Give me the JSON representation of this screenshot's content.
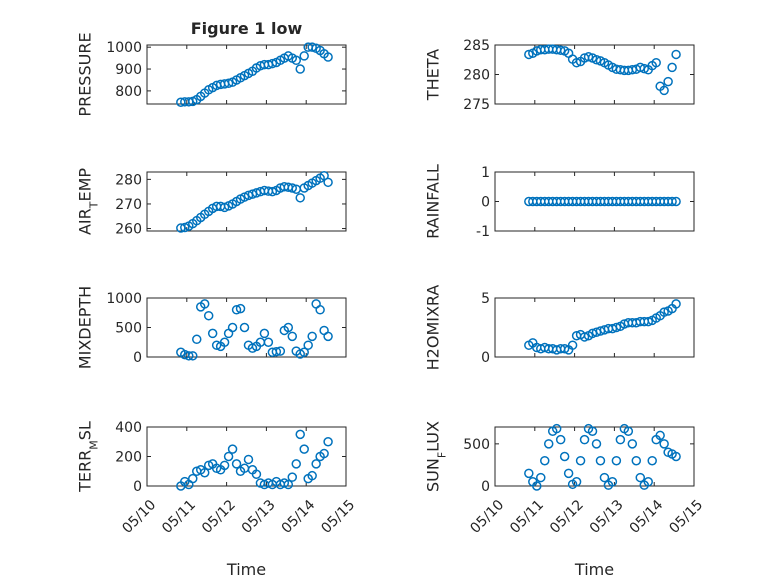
{
  "chart_data": [
    {
      "type": "scatter",
      "title": "Figure 1 low",
      "ylabel_html": "PRESSURE",
      "xlim": [
        0,
        5
      ],
      "ylim": [
        740,
        1010
      ],
      "yticks": [
        800,
        900,
        1000
      ],
      "xticklabels": [],
      "series": [
        {
          "x": [
            0.85,
            0.95,
            1.05,
            1.15,
            1.25,
            1.35,
            1.45,
            1.55,
            1.65,
            1.75,
            1.85,
            1.95,
            2.05,
            2.15,
            2.25,
            2.35,
            2.45,
            2.55,
            2.65,
            2.75,
            2.85,
            2.95,
            3.05,
            3.15,
            3.25,
            3.35,
            3.45,
            3.55,
            3.65,
            3.75,
            3.85,
            3.95,
            4.05,
            4.15,
            4.25,
            4.35,
            4.45,
            4.55
          ],
          "y": [
            748,
            750,
            750,
            752,
            760,
            775,
            790,
            805,
            815,
            825,
            830,
            832,
            835,
            840,
            850,
            860,
            870,
            880,
            890,
            905,
            915,
            920,
            920,
            925,
            930,
            940,
            950,
            960,
            950,
            940,
            900,
            960,
            1000,
            1000,
            995,
            985,
            970,
            955
          ]
        }
      ]
    },
    {
      "type": "scatter",
      "ylabel_html": "THETA",
      "xlim": [
        0,
        5
      ],
      "ylim": [
        275,
        285
      ],
      "yticks": [
        275,
        280,
        285
      ],
      "xticklabels": [],
      "series": [
        {
          "x": [
            0.85,
            0.95,
            1.05,
            1.15,
            1.25,
            1.35,
            1.45,
            1.55,
            1.65,
            1.75,
            1.85,
            1.95,
            2.05,
            2.15,
            2.25,
            2.35,
            2.45,
            2.55,
            2.65,
            2.75,
            2.85,
            2.95,
            3.05,
            3.15,
            3.25,
            3.35,
            3.45,
            3.55,
            3.65,
            3.75,
            3.85,
            3.95,
            4.05,
            4.15,
            4.25,
            4.35,
            4.45,
            4.55
          ],
          "y": [
            283.4,
            283.6,
            284.0,
            284.2,
            284.2,
            284.3,
            284.3,
            284.2,
            284.1,
            284.0,
            283.6,
            282.6,
            282.0,
            282.2,
            282.8,
            283.0,
            282.8,
            282.5,
            282.3,
            282.0,
            281.6,
            281.2,
            280.9,
            280.8,
            280.7,
            280.7,
            280.8,
            280.9,
            281.2,
            281.0,
            280.8,
            281.5,
            282.0,
            278.0,
            277.3,
            278.8,
            281.2,
            283.4
          ]
        }
      ]
    },
    {
      "type": "scatter",
      "ylabel_html": "AIR<tspan baseline-shift=\"sub\" font-size=\"11px\">T</tspan>EMP",
      "xlim": [
        0,
        5
      ],
      "ylim": [
        259,
        283
      ],
      "yticks": [
        260,
        270,
        280
      ],
      "xticklabels": [],
      "series": [
        {
          "x": [
            0.85,
            0.95,
            1.05,
            1.15,
            1.25,
            1.35,
            1.45,
            1.55,
            1.65,
            1.75,
            1.85,
            1.95,
            2.05,
            2.15,
            2.25,
            2.35,
            2.45,
            2.55,
            2.65,
            2.75,
            2.85,
            2.95,
            3.05,
            3.15,
            3.25,
            3.35,
            3.45,
            3.55,
            3.65,
            3.75,
            3.85,
            3.95,
            4.05,
            4.15,
            4.25,
            4.35,
            4.45,
            4.55
          ],
          "y": [
            260.2,
            260.4,
            261.0,
            262.0,
            263.2,
            264.5,
            265.8,
            267.0,
            268.2,
            269.0,
            269.0,
            268.6,
            269.2,
            270.0,
            271.0,
            272.0,
            272.8,
            273.5,
            274.0,
            274.5,
            275.0,
            275.5,
            275.2,
            275.0,
            275.5,
            276.5,
            277.0,
            276.8,
            276.5,
            276.0,
            272.5,
            276.5,
            277.5,
            278.5,
            279.5,
            280.5,
            281.5,
            278.8
          ]
        }
      ]
    },
    {
      "type": "scatter",
      "ylabel_html": "RAINFALL",
      "xlim": [
        0,
        5
      ],
      "ylim": [
        -1,
        1
      ],
      "yticks": [
        -1,
        0,
        1
      ],
      "xticklabels": [],
      "series": [
        {
          "x": [
            0.85,
            0.95,
            1.05,
            1.15,
            1.25,
            1.35,
            1.45,
            1.55,
            1.65,
            1.75,
            1.85,
            1.95,
            2.05,
            2.15,
            2.25,
            2.35,
            2.45,
            2.55,
            2.65,
            2.75,
            2.85,
            2.95,
            3.05,
            3.15,
            3.25,
            3.35,
            3.45,
            3.55,
            3.65,
            3.75,
            3.85,
            3.95,
            4.05,
            4.15,
            4.25,
            4.35,
            4.45,
            4.55
          ],
          "y": [
            0,
            0,
            0,
            0,
            0,
            0,
            0,
            0,
            0,
            0,
            0,
            0,
            0,
            0,
            0,
            0,
            0,
            0,
            0,
            0,
            0,
            0,
            0,
            0,
            0,
            0,
            0,
            0,
            0,
            0,
            0,
            0,
            0,
            0,
            0,
            0,
            0,
            0
          ]
        }
      ]
    },
    {
      "type": "scatter",
      "ylabel_html": "MIXDEPTH",
      "xlim": [
        0,
        5
      ],
      "ylim": [
        0,
        1000
      ],
      "yticks": [
        0,
        500,
        1000
      ],
      "xticklabels": [],
      "series": [
        {
          "x": [
            0.85,
            0.95,
            1.05,
            1.15,
            1.25,
            1.35,
            1.45,
            1.55,
            1.65,
            1.75,
            1.85,
            1.95,
            2.05,
            2.15,
            2.25,
            2.35,
            2.45,
            2.55,
            2.65,
            2.75,
            2.85,
            2.95,
            3.05,
            3.15,
            3.25,
            3.35,
            3.45,
            3.55,
            3.65,
            3.75,
            3.85,
            3.95,
            4.05,
            4.15,
            4.25,
            4.35,
            4.45,
            4.55
          ],
          "y": [
            80,
            40,
            20,
            20,
            300,
            850,
            900,
            700,
            400,
            200,
            180,
            250,
            400,
            500,
            800,
            820,
            500,
            200,
            150,
            180,
            250,
            400,
            250,
            80,
            90,
            100,
            450,
            500,
            350,
            100,
            50,
            80,
            200,
            350,
            900,
            800,
            450,
            350
          ]
        }
      ]
    },
    {
      "type": "scatter",
      "ylabel_html": "H2OMIXRA",
      "xlim": [
        0,
        5
      ],
      "ylim": [
        0,
        5
      ],
      "yticks": [
        0,
        5
      ],
      "xticklabels": [],
      "series": [
        {
          "x": [
            0.85,
            0.95,
            1.05,
            1.15,
            1.25,
            1.35,
            1.45,
            1.55,
            1.65,
            1.75,
            1.85,
            1.95,
            2.05,
            2.15,
            2.25,
            2.35,
            2.45,
            2.55,
            2.65,
            2.75,
            2.85,
            2.95,
            3.05,
            3.15,
            3.25,
            3.35,
            3.45,
            3.55,
            3.65,
            3.75,
            3.85,
            3.95,
            4.05,
            4.15,
            4.25,
            4.35,
            4.45,
            4.55
          ],
          "y": [
            1.0,
            1.2,
            0.8,
            0.7,
            0.8,
            0.7,
            0.7,
            0.6,
            0.7,
            0.7,
            0.6,
            1.0,
            1.8,
            1.9,
            1.7,
            1.8,
            2.0,
            2.1,
            2.2,
            2.3,
            2.4,
            2.4,
            2.5,
            2.6,
            2.8,
            2.9,
            2.9,
            2.9,
            3.0,
            3.0,
            3.0,
            3.1,
            3.3,
            3.5,
            3.8,
            3.9,
            4.1,
            4.5
          ]
        }
      ]
    },
    {
      "type": "scatter",
      "ylabel_html": "TERR<tspan baseline-shift=\"sub\" font-size=\"11px\">M</tspan>SL",
      "xlim": [
        0,
        5
      ],
      "ylim": [
        0,
        400
      ],
      "yticks": [
        0,
        200,
        400
      ],
      "xticklabels": [
        "05/10",
        "05/11",
        "05/12",
        "05/13",
        "05/14",
        "05/15"
      ],
      "xlabel": "Time",
      "series": [
        {
          "x": [
            0.85,
            0.95,
            1.05,
            1.15,
            1.25,
            1.35,
            1.45,
            1.55,
            1.65,
            1.75,
            1.85,
            1.95,
            2.05,
            2.15,
            2.25,
            2.35,
            2.45,
            2.55,
            2.65,
            2.75,
            2.85,
            2.95,
            3.05,
            3.15,
            3.25,
            3.35,
            3.45,
            3.55,
            3.65,
            3.75,
            3.85,
            3.95,
            4.05,
            4.15,
            4.25,
            4.35,
            4.45,
            4.55
          ],
          "y": [
            0,
            30,
            10,
            50,
            100,
            110,
            90,
            140,
            150,
            120,
            110,
            140,
            200,
            250,
            150,
            100,
            120,
            180,
            110,
            80,
            20,
            10,
            20,
            10,
            30,
            10,
            20,
            10,
            60,
            150,
            350,
            250,
            50,
            70,
            150,
            200,
            220,
            300
          ]
        }
      ]
    },
    {
      "type": "scatter",
      "ylabel_html": "SUN<tspan baseline-shift=\"sub\" font-size=\"11px\">F</tspan>LUX",
      "xlim": [
        0,
        5
      ],
      "ylim": [
        0,
        700
      ],
      "yticks": [
        0,
        500
      ],
      "xticklabels": [
        "05/10",
        "05/11",
        "05/12",
        "05/13",
        "05/14",
        "05/15"
      ],
      "xlabel": "Time",
      "series": [
        {
          "x": [
            0.85,
            0.95,
            1.05,
            1.15,
            1.25,
            1.35,
            1.45,
            1.55,
            1.65,
            1.75,
            1.85,
            1.95,
            2.05,
            2.15,
            2.25,
            2.35,
            2.45,
            2.55,
            2.65,
            2.75,
            2.85,
            2.95,
            3.05,
            3.15,
            3.25,
            3.35,
            3.45,
            3.55,
            3.65,
            3.75,
            3.85,
            3.95,
            4.05,
            4.15,
            4.25,
            4.35,
            4.45,
            4.55
          ],
          "y": [
            150,
            50,
            0,
            100,
            300,
            500,
            650,
            680,
            550,
            350,
            150,
            20,
            50,
            300,
            550,
            680,
            650,
            500,
            300,
            100,
            10,
            50,
            300,
            550,
            680,
            650,
            500,
            300,
            100,
            10,
            50,
            300,
            550,
            600,
            500,
            400,
            380,
            350
          ]
        }
      ]
    }
  ]
}
